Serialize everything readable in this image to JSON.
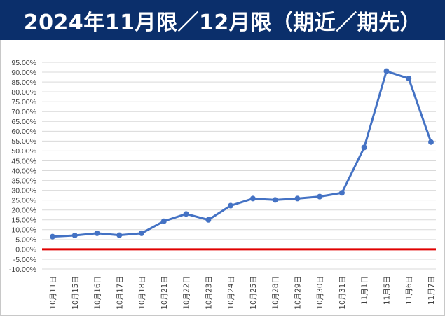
{
  "title": "2024年11月限／12月限（期近／期先）",
  "colors": {
    "title_background": "#0b2f6b",
    "title_text": "#ffffff",
    "series_line": "#4472c4",
    "zero_line": "#e00000",
    "grid": "#d9d9d9"
  },
  "chart_data": {
    "type": "line",
    "title": "2024年11月限／12月限（期近／期先）",
    "xlabel": "",
    "ylabel": "",
    "ylim": [
      -0.1,
      0.95
    ],
    "ytick_step": 0.05,
    "y_format": "percent_2dp",
    "grid": "horizontal",
    "legend": "none",
    "categories": [
      "10月11日",
      "10月15日",
      "10月16日",
      "10月17日",
      "10月18日",
      "10月21日",
      "10月22日",
      "10月23日",
      "10月24日",
      "10月25日",
      "10月28日",
      "10月29日",
      "10月30日",
      "10月31日",
      "11月1日",
      "11月5日",
      "11月6日",
      "11月7日"
    ],
    "y_ticks": [
      "95.00%",
      "90.00%",
      "85.00%",
      "80.00%",
      "75.00%",
      "70.00%",
      "65.00%",
      "60.00%",
      "55.00%",
      "50.00%",
      "45.00%",
      "40.00%",
      "35.00%",
      "30.00%",
      "25.00%",
      "20.00%",
      "15.00%",
      "10.00%",
      "5.00%",
      "0.00%",
      "-5.00%",
      "-10.00%"
    ],
    "series": [
      {
        "values": [
          0.065,
          0.071,
          0.082,
          0.072,
          0.082,
          0.143,
          0.18,
          0.15,
          0.222,
          0.258,
          0.251,
          0.258,
          0.268,
          0.287,
          0.518,
          0.905,
          0.868,
          0.545
        ]
      }
    ],
    "reference_line": {
      "y": 0.0
    }
  }
}
